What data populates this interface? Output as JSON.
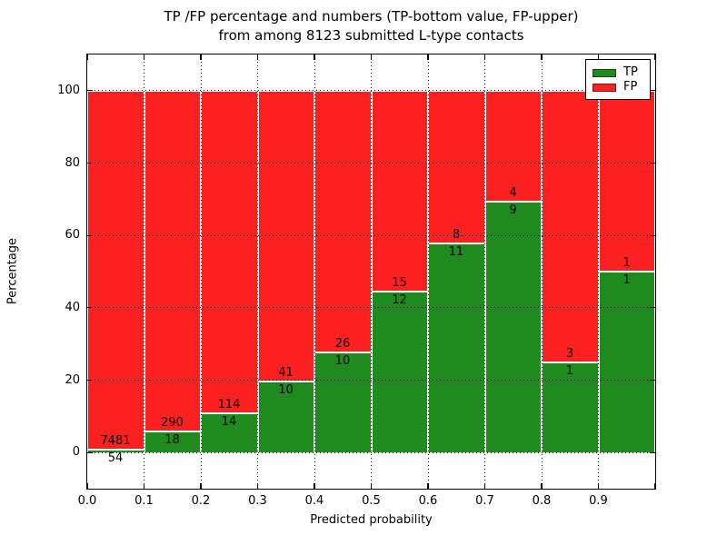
{
  "title": {
    "line1": "TP /FP percentage and numbers (TP-bottom value, FP-upper)",
    "line2": "from among 8123 submitted L-type contacts"
  },
  "axes": {
    "xlabel": "Predicted probability",
    "ylabel": "Percentage",
    "x_tick_labels": [
      "0.0",
      "0.1",
      "0.2",
      "0.3",
      "0.4",
      "0.5",
      "0.6",
      "0.7",
      "0.8",
      "0.9"
    ],
    "y_tick_labels": [
      "0",
      "20",
      "40",
      "60",
      "80",
      "100"
    ],
    "y_tick_values": [
      0,
      20,
      40,
      60,
      80,
      100
    ]
  },
  "legend": {
    "items": [
      {
        "label": "TP",
        "color": "#1f8b1f"
      },
      {
        "label": "FP",
        "color": "#fb2121"
      }
    ]
  },
  "chart_data": {
    "type": "bar",
    "stacked": true,
    "title": "TP /FP percentage and numbers (TP-bottom value, FP-upper) from among 8123 submitted L-type contacts",
    "xlabel": "Predicted probability",
    "ylabel": "Percentage",
    "xlim": [
      0.0,
      1.0
    ],
    "ylim": [
      -10,
      110
    ],
    "grid": true,
    "grid_style": "dotted",
    "legend_position": "upper right",
    "total_contacts": 8123,
    "bin_starts": [
      0.0,
      0.1,
      0.2,
      0.3,
      0.4,
      0.5,
      0.6,
      0.7,
      0.8,
      0.9
    ],
    "bin_width": 0.1,
    "annotation_rule": "TP-bottom value, FP-upper",
    "series": [
      {
        "name": "TP",
        "color": "#1f8b1f",
        "counts": [
          54,
          18,
          14,
          10,
          10,
          12,
          11,
          9,
          1,
          1
        ],
        "percent": [
          0.72,
          5.84,
          10.94,
          19.61,
          27.78,
          44.44,
          57.89,
          69.23,
          25.0,
          50.0
        ]
      },
      {
        "name": "FP",
        "color": "#fb2121",
        "counts": [
          7481,
          290,
          114,
          41,
          26,
          15,
          8,
          4,
          3,
          1
        ],
        "percent": [
          99.28,
          94.16,
          89.06,
          80.39,
          72.22,
          55.56,
          42.11,
          30.77,
          75.0,
          50.0
        ]
      }
    ]
  }
}
